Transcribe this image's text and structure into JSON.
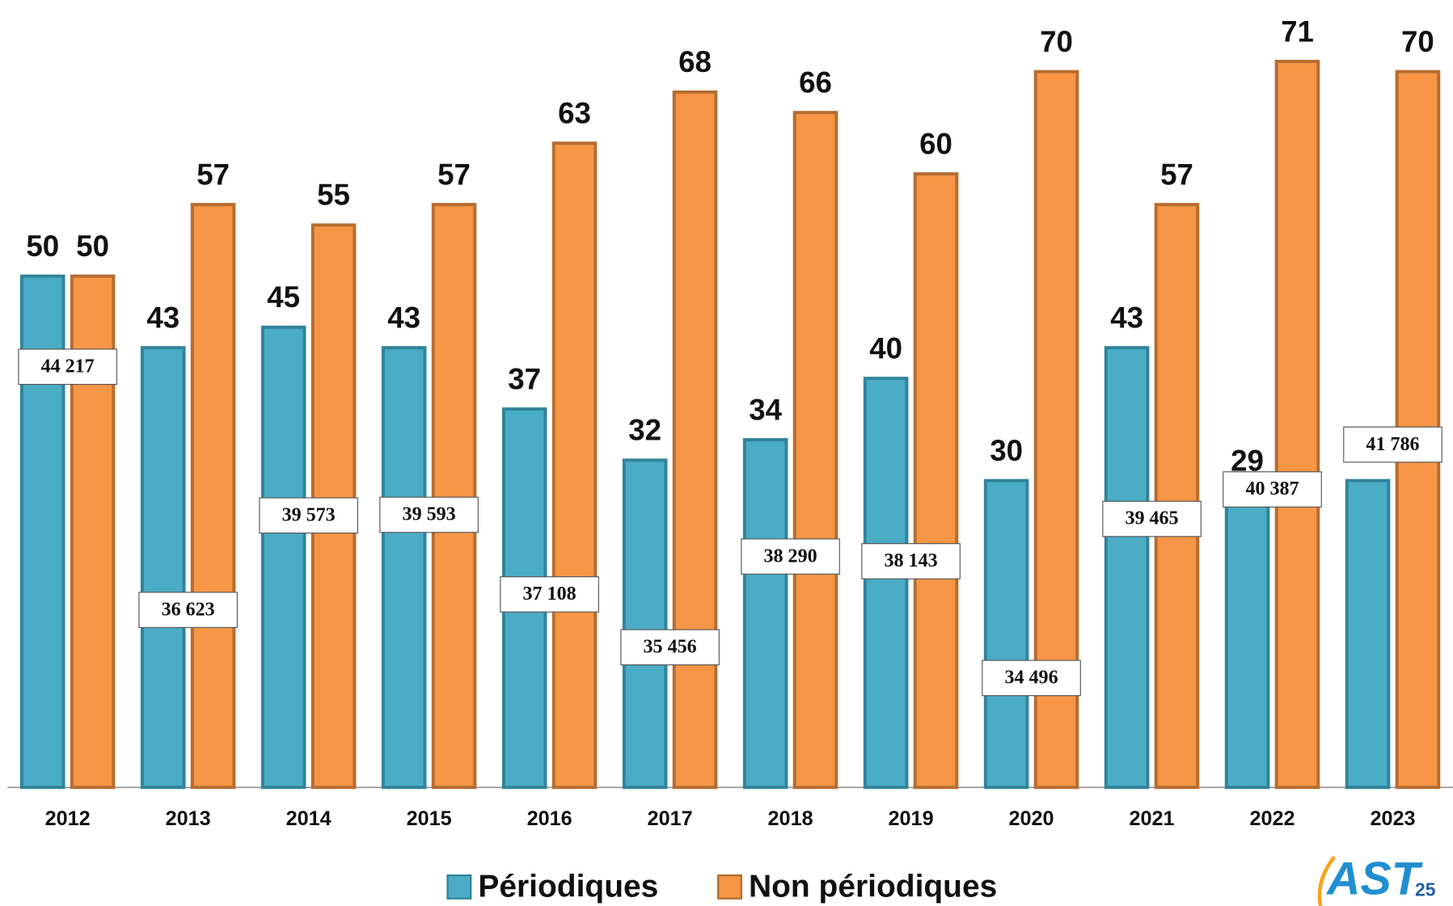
{
  "chart_data": {
    "type": "bar",
    "categories": [
      "2012",
      "2013",
      "2014",
      "2015",
      "2016",
      "2017",
      "2018",
      "2019",
      "2020",
      "2021",
      "2022",
      "2023"
    ],
    "series": [
      {
        "name": "Périodiques",
        "color": "#4bacc6",
        "values": [
          50,
          43,
          45,
          43,
          37,
          32,
          34,
          40,
          30,
          43,
          29,
          30
        ]
      },
      {
        "name": "Non périodiques",
        "color": "#f79646",
        "values": [
          50,
          57,
          55,
          57,
          63,
          68,
          66,
          60,
          70,
          57,
          71,
          70
        ]
      }
    ],
    "totals": [
      44217,
      36623,
      39573,
      39593,
      37108,
      35456,
      38290,
      38143,
      34496,
      39465,
      40387,
      41786
    ],
    "totals_labels": [
      "44 217",
      "36 623",
      "39 573",
      "39 593",
      "37 108",
      "35 456",
      "38 290",
      "38 143",
      "34 496",
      "39 465",
      "40 387",
      "41 786"
    ],
    "ylim": [
      0,
      77
    ],
    "y2lim": [
      31080,
      55670
    ],
    "legend": "bottom",
    "logo": {
      "text": "AST",
      "sub": "25"
    }
  }
}
